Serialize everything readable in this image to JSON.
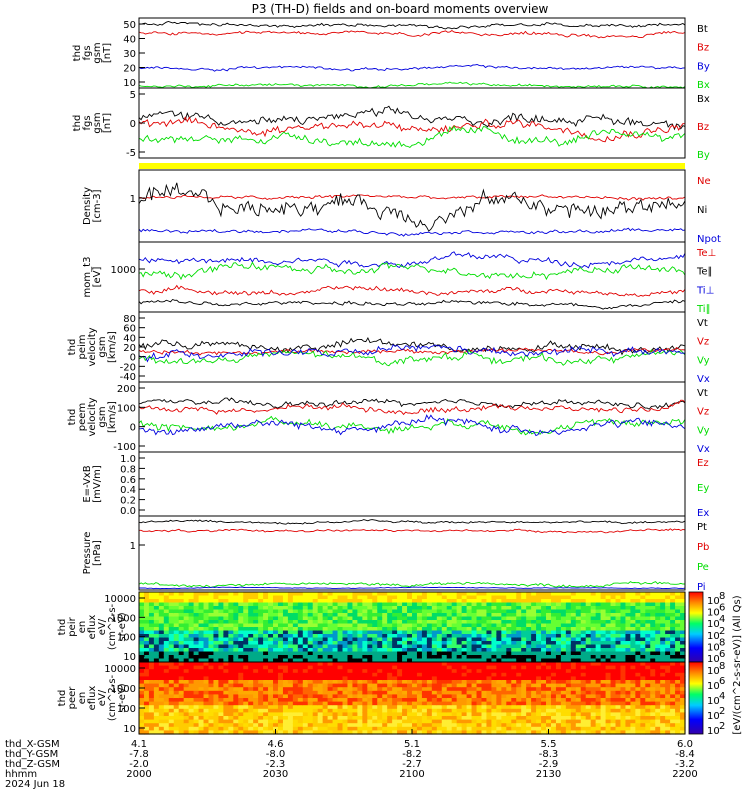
{
  "title": "P3 (TH-D) fields and on-board moments overview",
  "colors": {
    "black": "#000000",
    "red": "#e00000",
    "green": "#00dd00",
    "blue": "#0000dd",
    "yellow": "#ffff00"
  },
  "chart_data": [
    {
      "type": "line",
      "panel": "fgs_btotal",
      "ylabel": [
        "thd",
        "fgs",
        "gsm",
        "[nT]"
      ],
      "yticks": [
        "50",
        "40",
        "30",
        "20",
        "10"
      ],
      "ylim": [
        5,
        57
      ],
      "series": [
        {
          "name": "Bt",
          "color": "black",
          "level": 52,
          "var": 2.5
        },
        {
          "name": "Bz",
          "color": "red",
          "level": 45,
          "var": 2.5
        },
        {
          "name": "By",
          "color": "blue",
          "level": 20,
          "var": 2.0
        },
        {
          "name": "Bx",
          "color": "green",
          "level": 7,
          "var": 2.0
        }
      ]
    },
    {
      "type": "line",
      "panel": "fgs_components",
      "ylabel": [
        "thd",
        "fgs",
        "gsm",
        "[nT]"
      ],
      "yticks": [
        "5",
        "0",
        "-5"
      ],
      "ylim": [
        -9,
        9
      ],
      "series": [
        {
          "name": "Bx",
          "color": "black",
          "level": 1,
          "var": 2.5
        },
        {
          "name": "Bz",
          "color": "red",
          "level": -1,
          "var": 2.5
        },
        {
          "name": "By",
          "color": "green",
          "level": -4,
          "var": 2.5
        }
      ]
    },
    {
      "type": "line",
      "panel": "density",
      "ylabel": [
        "Density",
        "[cm-3]"
      ],
      "yticks": [
        "1"
      ],
      "ylim": [
        0,
        1
      ],
      "series": [
        {
          "name": "Ne",
          "color": "red",
          "level": 0.62,
          "var": 0.05
        },
        {
          "name": "Ni",
          "color": "black",
          "level": 0.5,
          "var": 0.25
        },
        {
          "name": "Npot",
          "color": "blue",
          "level": 0.15,
          "var": 0.05
        }
      ]
    },
    {
      "type": "line",
      "panel": "temperature",
      "ylabel": [
        "mom_t3",
        "[eV]"
      ],
      "yticks": [
        "1000"
      ],
      "ylim": [
        0,
        1
      ],
      "series": [
        {
          "name": "Te⊥",
          "color": "red",
          "level": 0.3,
          "var": 0.07
        },
        {
          "name": "Te∥",
          "color": "black",
          "level": 0.12,
          "var": 0.06
        },
        {
          "name": "Ti⊥",
          "color": "blue",
          "level": 0.75,
          "var": 0.1
        },
        {
          "name": "Ti∥",
          "color": "green",
          "level": 0.6,
          "var": 0.12
        }
      ]
    },
    {
      "type": "line",
      "panel": "peim_velocity",
      "ylabel": [
        "thd",
        "peim",
        "velocity",
        "gsm",
        "[km/s]"
      ],
      "yticks": [
        "80",
        "60",
        "40",
        "20",
        "0",
        "-20",
        "-40"
      ],
      "ylim": [
        -45,
        85
      ],
      "series": [
        {
          "name": "Vt",
          "color": "black",
          "level": 22,
          "var": 15
        },
        {
          "name": "Vz",
          "color": "red",
          "level": 12,
          "var": 8
        },
        {
          "name": "Vy",
          "color": "green",
          "level": 0,
          "var": 15
        },
        {
          "name": "Vx",
          "color": "blue",
          "level": 10,
          "var": 15
        }
      ]
    },
    {
      "type": "line",
      "panel": "peem_velocity",
      "ylabel": [
        "thd",
        "peem",
        "velocity",
        "gsm",
        "[km/s]"
      ],
      "yticks": [
        "200",
        "100",
        "0",
        "-100"
      ],
      "ylim": [
        -150,
        200
      ],
      "series": [
        {
          "name": "Vt",
          "color": "black",
          "level": 90,
          "var": 30
        },
        {
          "name": "Vz",
          "color": "red",
          "level": 70,
          "var": 30
        },
        {
          "name": "Vy",
          "color": "green",
          "level": -10,
          "var": 40
        },
        {
          "name": "Vx",
          "color": "blue",
          "level": -20,
          "var": 45
        }
      ]
    },
    {
      "type": "line",
      "panel": "efield",
      "ylabel": [
        "E=-VxB",
        "[mV/m]"
      ],
      "yticks": [
        "1.0",
        "0.8",
        "0.6",
        "0.4",
        "0.2",
        "0.0"
      ],
      "ylim": [
        0,
        1
      ],
      "series": [
        {
          "name": "Ez",
          "color": "red"
        },
        {
          "name": "Ey",
          "color": "green"
        },
        {
          "name": "Ex",
          "color": "blue"
        }
      ]
    },
    {
      "type": "line",
      "panel": "pressure",
      "ylabel": [
        "Pressure",
        "[nPa]"
      ],
      "yticks": [
        "1"
      ],
      "ylim": [
        0,
        1
      ],
      "series": [
        {
          "name": "Pt",
          "color": "black",
          "level": 0.92,
          "var": 0.03
        },
        {
          "name": "Pb",
          "color": "red",
          "level": 0.8,
          "var": 0.03
        },
        {
          "name": "Pe",
          "color": "green",
          "level": 0.08,
          "var": 0.04
        },
        {
          "name": "Pi",
          "color": "blue",
          "level": 0.03,
          "var": 0.01
        }
      ]
    },
    {
      "type": "heatmap",
      "panel": "peir_spectrogram",
      "ylabel": [
        "thd",
        "peir",
        "en",
        "eflux",
        "eV/",
        "(cm^2-s-",
        "sr-eV)"
      ],
      "yticks": [
        "10000",
        "1000",
        "100",
        "10"
      ]
    },
    {
      "type": "heatmap",
      "panel": "peer_spectrogram",
      "ylabel": [
        "thd",
        "peer",
        "en",
        "eflux",
        "eV/",
        "(cm^2-s-",
        "sr-eV)"
      ],
      "yticks": [
        "10000",
        "1000",
        "100",
        "10"
      ]
    }
  ],
  "colorbar": {
    "label": "[eV/(cm^2-s-sr-eV)] (All Qs)",
    "upper_ticks": [
      "10",
      "10",
      "10",
      "10",
      "10",
      "10"
    ],
    "upper_exps": [
      "8",
      "6",
      "4",
      "2",
      "8",
      "6"
    ],
    "lower_ticks": [
      "10",
      "10",
      "10",
      "10",
      "10"
    ],
    "lower_exps": [
      "8",
      "6",
      "4",
      "2",
      "2"
    ]
  },
  "xaxis": {
    "rows": [
      {
        "label": "thd_X-GSM",
        "values": [
          "4.1",
          "4.6",
          "5.1",
          "5.5",
          "6.0"
        ]
      },
      {
        "label": "thd_Y-GSM",
        "values": [
          "-7.8",
          "-8.0",
          "-8.2",
          "-8.3",
          "-8.4"
        ]
      },
      {
        "label": "thd_Z-GSM",
        "values": [
          "-2.0",
          "-2.3",
          "-2.7",
          "-2.9",
          "-3.2"
        ]
      },
      {
        "label": "hhmm",
        "values": [
          "2000",
          "2030",
          "2100",
          "2130",
          "2200"
        ]
      }
    ],
    "date": "2024 Jun 18"
  }
}
